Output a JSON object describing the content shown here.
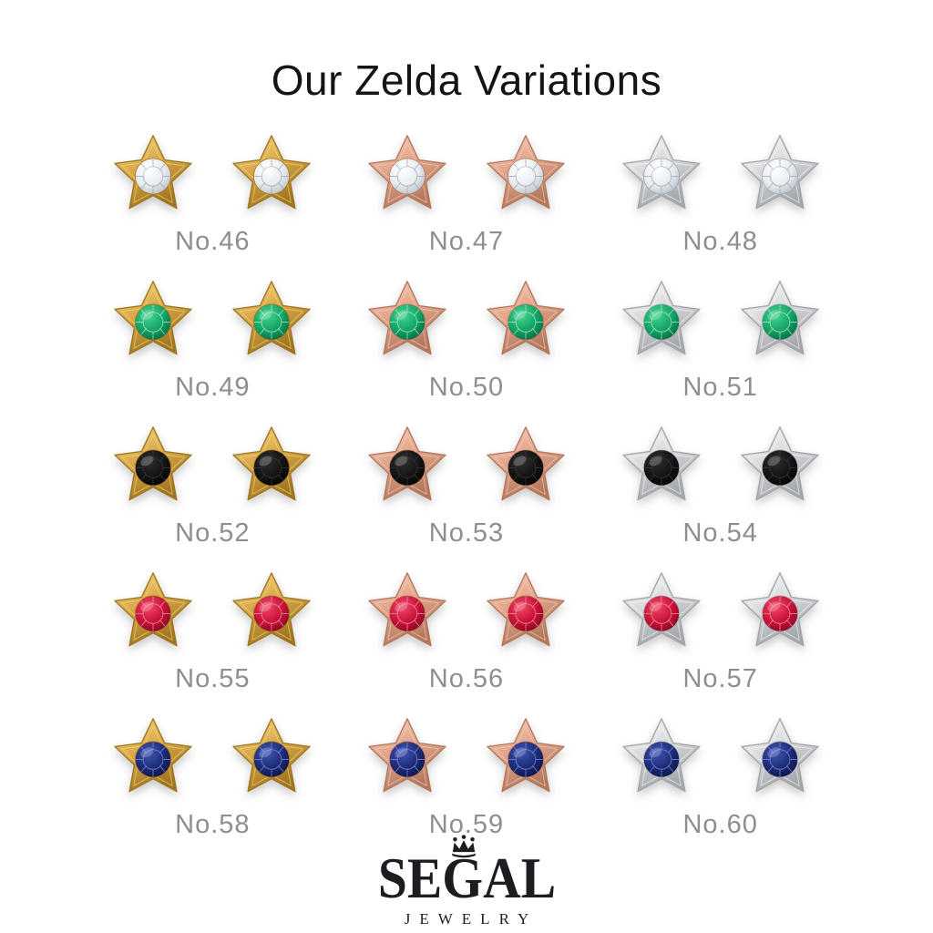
{
  "title": "Our Zelda Variations",
  "grid": {
    "items": [
      {
        "label": "No.46",
        "metal": "yellow_gold",
        "stone": "diamond"
      },
      {
        "label": "No.47",
        "metal": "rose_gold",
        "stone": "diamond"
      },
      {
        "label": "No.48",
        "metal": "white_gold",
        "stone": "diamond"
      },
      {
        "label": "No.49",
        "metal": "yellow_gold",
        "stone": "emerald"
      },
      {
        "label": "No.50",
        "metal": "rose_gold",
        "stone": "emerald"
      },
      {
        "label": "No.51",
        "metal": "white_gold",
        "stone": "emerald"
      },
      {
        "label": "No.52",
        "metal": "yellow_gold",
        "stone": "black"
      },
      {
        "label": "No.53",
        "metal": "rose_gold",
        "stone": "black"
      },
      {
        "label": "No.54",
        "metal": "white_gold",
        "stone": "black"
      },
      {
        "label": "No.55",
        "metal": "yellow_gold",
        "stone": "ruby"
      },
      {
        "label": "No.56",
        "metal": "rose_gold",
        "stone": "ruby"
      },
      {
        "label": "No.57",
        "metal": "white_gold",
        "stone": "ruby"
      },
      {
        "label": "No.58",
        "metal": "yellow_gold",
        "stone": "sapphire"
      },
      {
        "label": "No.59",
        "metal": "rose_gold",
        "stone": "sapphire"
      },
      {
        "label": "No.60",
        "metal": "white_gold",
        "stone": "sapphire"
      }
    ]
  },
  "logo": {
    "brand": "SEGAL",
    "subtitle": "JEWELRY",
    "crown_icon": "crown-icon"
  },
  "colors": {
    "background": "#ffffff",
    "title_text": "#151515",
    "label_text": "#8e8e8e",
    "logo_text": "#1d1c21",
    "metals": {
      "yellow_gold": {
        "light": "#f6d884",
        "mid": "#d9a94a",
        "dark": "#a0751f"
      },
      "rose_gold": {
        "light": "#f7cfb9",
        "mid": "#e2a68c",
        "dark": "#b3785c"
      },
      "white_gold": {
        "light": "#f8f9fa",
        "mid": "#d9dbdd",
        "dark": "#a2a5a9"
      }
    },
    "stones": {
      "diamond": {
        "light": "#ffffff",
        "mid": "#e9edf1",
        "dark": "#b4bcc5",
        "facet": "#97a1ad"
      },
      "emerald": {
        "light": "#49d492",
        "mid": "#12a566",
        "dark": "#05603a",
        "facet": "#b9efd5"
      },
      "black": {
        "light": "#303030",
        "mid": "#141414",
        "dark": "#000000",
        "facet": "#3a3a3a"
      },
      "ruby": {
        "light": "#f2486a",
        "mid": "#c81337",
        "dark": "#7e0520",
        "facet": "#ff9db2"
      },
      "sapphire": {
        "light": "#4156b4",
        "mid": "#1e2c78",
        "dark": "#0a1140",
        "facet": "#8194e6"
      }
    },
    "accent_ruby": {
      "light": "#f2557a",
      "mid": "#d31640",
      "dark": "#8a0a26"
    }
  }
}
